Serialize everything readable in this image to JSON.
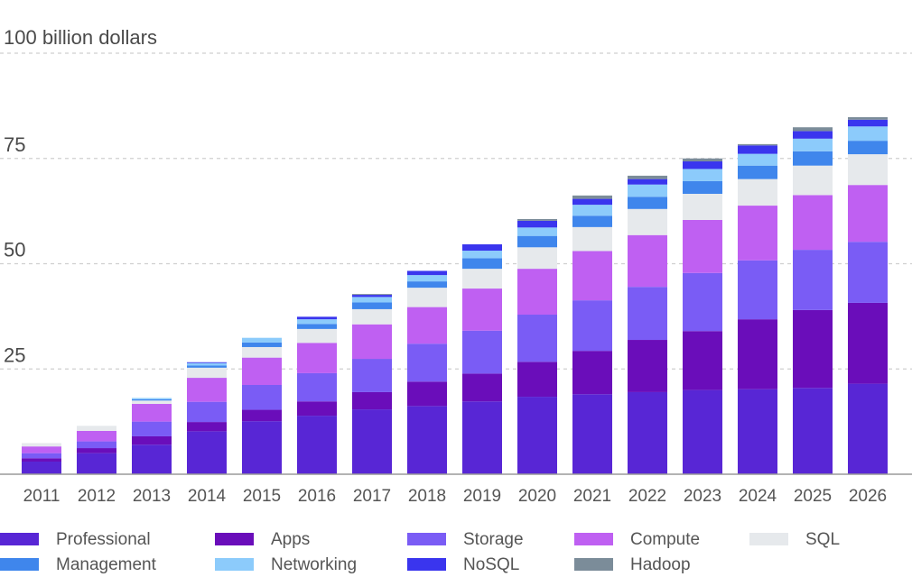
{
  "chart_data": {
    "type": "bar",
    "stacked": true,
    "ylabel": "100 billion dollars",
    "ylim": [
      0,
      100
    ],
    "yticks": [
      "25",
      "50",
      "75"
    ],
    "grid": true,
    "legend_placement": "bottom",
    "categories": [
      "2011",
      "2012",
      "2013",
      "2014",
      "2015",
      "2016",
      "2017",
      "2018",
      "2019",
      "2020",
      "2021",
      "2022",
      "2023",
      "2024",
      "2025",
      "2026"
    ],
    "series": [
      {
        "name": "Professional",
        "color": "#5826d5",
        "values": [
          3.0,
          5.0,
          7.0,
          10.2,
          12.6,
          13.9,
          15.4,
          16.2,
          17.3,
          18.4,
          19.0,
          19.5,
          20.0,
          20.2,
          20.5,
          21.5
        ]
      },
      {
        "name": "Apps",
        "color": "#6a0dba",
        "values": [
          0.8,
          1.2,
          2.0,
          2.2,
          2.7,
          3.4,
          4.1,
          5.8,
          6.6,
          8.3,
          10.3,
          12.4,
          14.0,
          16.6,
          18.5,
          19.2
        ]
      },
      {
        "name": "Storage",
        "color": "#7a5cf5",
        "values": [
          1.2,
          1.6,
          3.5,
          4.8,
          5.9,
          6.7,
          7.9,
          9.0,
          10.2,
          11.2,
          12.0,
          12.6,
          13.8,
          14.0,
          14.3,
          14.5
        ]
      },
      {
        "name": "Compute",
        "color": "#bf60f2",
        "values": [
          1.6,
          2.5,
          4.2,
          5.7,
          6.5,
          7.2,
          8.2,
          8.7,
          10.0,
          10.9,
          11.7,
          12.3,
          12.6,
          13.0,
          13.0,
          13.5
        ]
      },
      {
        "name": "SQL",
        "color": "#e6e9ec",
        "values": [
          0.8,
          1.2,
          0.8,
          2.4,
          2.5,
          3.3,
          3.6,
          4.6,
          4.7,
          5.1,
          5.7,
          6.2,
          6.2,
          6.3,
          7.0,
          7.3
        ]
      },
      {
        "name": "Management",
        "color": "#3f86ec",
        "values": [
          0.0,
          0.0,
          0.3,
          0.5,
          1.1,
          1.2,
          1.6,
          1.5,
          2.5,
          2.7,
          2.7,
          2.9,
          3.0,
          3.2,
          3.4,
          3.2
        ]
      },
      {
        "name": "Networking",
        "color": "#8ccbfb",
        "values": [
          0.0,
          0.0,
          0.3,
          0.6,
          1.1,
          1.1,
          1.3,
          1.5,
          1.8,
          2.0,
          2.6,
          2.9,
          2.9,
          2.8,
          3.0,
          3.4
        ]
      },
      {
        "name": "NoSQL",
        "color": "#3a35ee",
        "values": [
          0.0,
          0.0,
          0.0,
          0.2,
          0.0,
          0.6,
          0.5,
          1.0,
          1.5,
          1.6,
          1.4,
          1.3,
          1.8,
          2.0,
          1.8,
          1.6
        ]
      },
      {
        "name": "Hadoop",
        "color": "#7b8c99",
        "values": [
          0.0,
          0.0,
          0.0,
          0.0,
          0.0,
          0.0,
          0.2,
          0.0,
          0.0,
          0.4,
          0.8,
          0.8,
          0.7,
          0.3,
          0.9,
          0.6
        ]
      }
    ]
  }
}
